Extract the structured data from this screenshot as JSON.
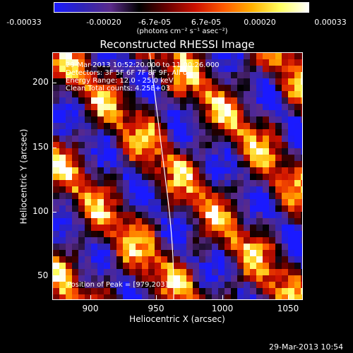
{
  "colorbar": {
    "ticks": [
      "-0.00033",
      "-0.00020",
      "-6.7e-05",
      "6.7e-05",
      "0.00020",
      "0.00033"
    ],
    "unit_label": "(photons cm⁻² s⁻¹ asec⁻²)",
    "stops": [
      "#1a1aff",
      "#2f24b8",
      "#5a2a8a",
      "#000000",
      "#6a0000",
      "#cc1100",
      "#ff5a00",
      "#ffb000",
      "#ffff60",
      "#ffffff"
    ]
  },
  "plot": {
    "title": "Reconstructed RHESSI Image",
    "x_label": "Heliocentric X (arcsec)",
    "y_label": "Heliocentric Y (arcsec)",
    "x_ticks": [
      "900",
      "950",
      "1000",
      "1050"
    ],
    "y_ticks": [
      "200",
      "150",
      "100",
      "50"
    ]
  },
  "info": {
    "line1": "29-Mar-2013 10:52:20.000 to 11:00:26.000",
    "line2": "Detectors: 3F 5F 6F 7F 8F 9F, All 0",
    "line3": "Energy Range: 12.0 - 25.0 keV",
    "line4": "Clean     Total counts: 4.25E+03",
    "peak": "Position of Peak = [979,203]"
  },
  "timestamp": "29-Mar-2013 10:54"
}
